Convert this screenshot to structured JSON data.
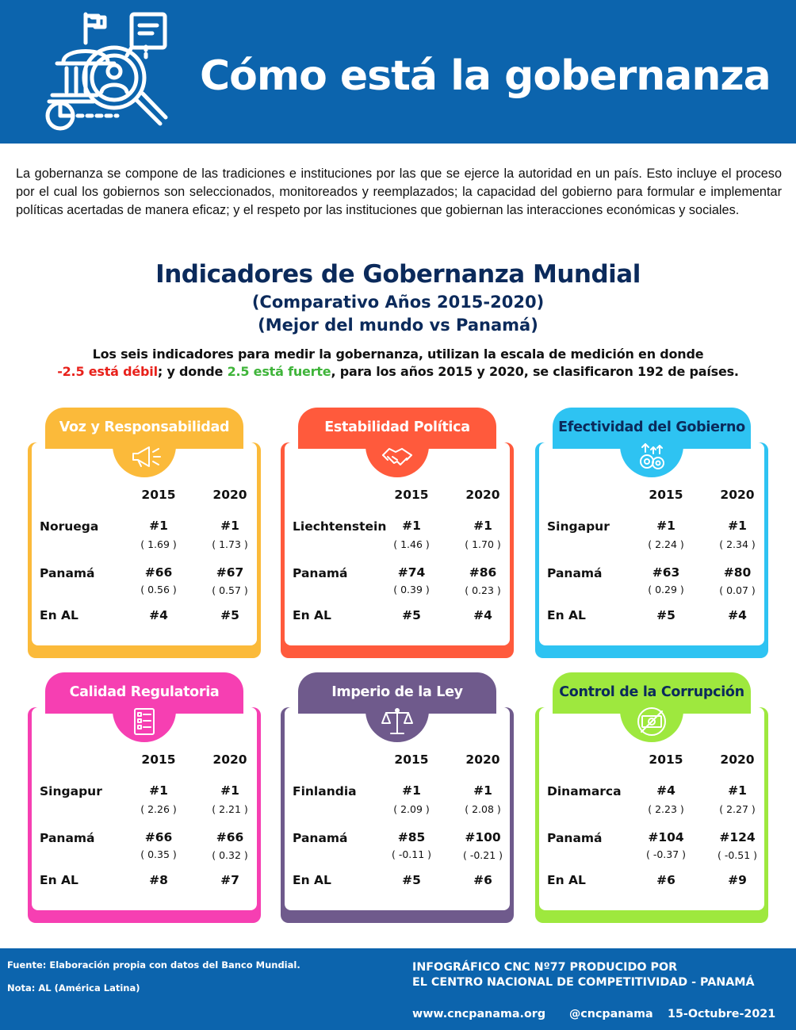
{
  "header": {
    "title": "Cómo está la gobernanza",
    "icon": "governance-search-icon"
  },
  "intro": "La gobernanza se compone de las tradiciones e instituciones por las que se ejerce la autoridad en un país. Esto incluye el proceso por el cual los gobiernos son seleccionados, monitoreados y reemplazados; la capacidad del gobierno para formular e implementar políticas acertadas de manera eficaz; y el respeto por las instituciones que gobiernan las interacciones económicas y sociales.",
  "section": {
    "title": "Indicadores de Gobernanza Mundial",
    "subtitle1": "(Comparativo Años 2015-2020)",
    "subtitle2": "(Mejor del mundo vs Panamá)",
    "scale_line1": "Los seis indicadores para medir la gobernanza, utilizan la escala de medición en donde",
    "scale_weak": "-2.5 está débil",
    "scale_mid": "; y donde ",
    "scale_strong": "2.5 está fuerte",
    "scale_end": ", para los años 2015 y 2020, se clasificaron 192 de países."
  },
  "year_a": "2015",
  "year_b": "2020",
  "row_panama": "Panamá",
  "row_al": "En AL",
  "colors": {
    "header_blue": "#0c64ad",
    "voz": "#fbba3a",
    "estabilidad": "#ff5a3c",
    "efectividad": "#2ec3f2",
    "calidad": "#f63fb2",
    "imperio": "#6f5a8c",
    "corrupcion": "#9ee83e"
  },
  "cards": [
    {
      "title": "Voz y Responsabilidad",
      "icon": "megaphone-icon",
      "best": "Noruega",
      "best_2015": "#1",
      "best_2015_score": "( 1.69 )",
      "best_2020": "#1",
      "best_2020_score": "( 1.73 )",
      "pan_2015": "#66",
      "pan_2015_score": "( 0.56 )",
      "pan_2020": "#67",
      "pan_2020_score": "( 0.57 )",
      "al_2015": "#4",
      "al_2020": "#5"
    },
    {
      "title": "Estabilidad Política",
      "icon": "handshake-icon",
      "best": "Liechtenstein",
      "best_2015": "#1",
      "best_2015_score": "( 1.46 )",
      "best_2020": "#1",
      "best_2020_score": "( 1.70 )",
      "pan_2015": "#74",
      "pan_2015_score": "( 0.39 )",
      "pan_2020": "#86",
      "pan_2020_score": "( 0.23 )",
      "al_2015": "#5",
      "al_2020": "#4"
    },
    {
      "title": "Efectividad del Gobierno",
      "icon": "gears-growth-icon",
      "best": "Singapur",
      "best_2015": "#1",
      "best_2015_score": "( 2.24 )",
      "best_2020": "#1",
      "best_2020_score": "( 2.34 )",
      "pan_2015": "#63",
      "pan_2015_score": "( 0.29 )",
      "pan_2020": "#80",
      "pan_2020_score": "( 0.07 )",
      "al_2015": "#5",
      "al_2020": "#4"
    },
    {
      "title": "Calidad Regulatoria",
      "icon": "checklist-document-icon",
      "best": "Singapur",
      "best_2015": "#1",
      "best_2015_score": "( 2.26 )",
      "best_2020": "#1",
      "best_2020_score": "( 2.21 )",
      "pan_2015": "#66",
      "pan_2015_score": "( 0.35 )",
      "pan_2020": "#66",
      "pan_2020_score": "( 0.32 )",
      "al_2015": "#8",
      "al_2020": "#7"
    },
    {
      "title": "Imperio de la Ley",
      "icon": "scales-icon",
      "best": "Finlandia",
      "best_2015": "#1",
      "best_2015_score": "( 2.09 )",
      "best_2020": "#1",
      "best_2020_score": "( 2.08 )",
      "pan_2015": "#85",
      "pan_2015_score": "( -0.11 )",
      "pan_2020": "#100",
      "pan_2020_score": "( -0.21 )",
      "al_2015": "#5",
      "al_2020": "#6"
    },
    {
      "title": "Control de la Corrupción",
      "icon": "no-money-icon",
      "best": "Dinamarca",
      "best_2015": "#4",
      "best_2015_score": "( 2.23 )",
      "best_2020": "#1",
      "best_2020_score": "( 2.27 )",
      "pan_2015": "#104",
      "pan_2015_score": "( -0.37 )",
      "pan_2020": "#124",
      "pan_2020_score": "( -0.51 )",
      "al_2015": "#6",
      "al_2020": "#9"
    }
  ],
  "footer": {
    "source": "Fuente: Elaboración propia con datos del Banco Mundial.",
    "note": "Nota: AL (América Latina)",
    "credit1": "INFOGRÁFICO CNC Nº77 PRODUCIDO POR",
    "credit2": "EL CENTRO NACIONAL DE COMPETITIVIDAD - PANAMÁ",
    "website": "www.cncpanama.org",
    "handle": "@cncpanama",
    "date": "15-Octubre-2021"
  }
}
